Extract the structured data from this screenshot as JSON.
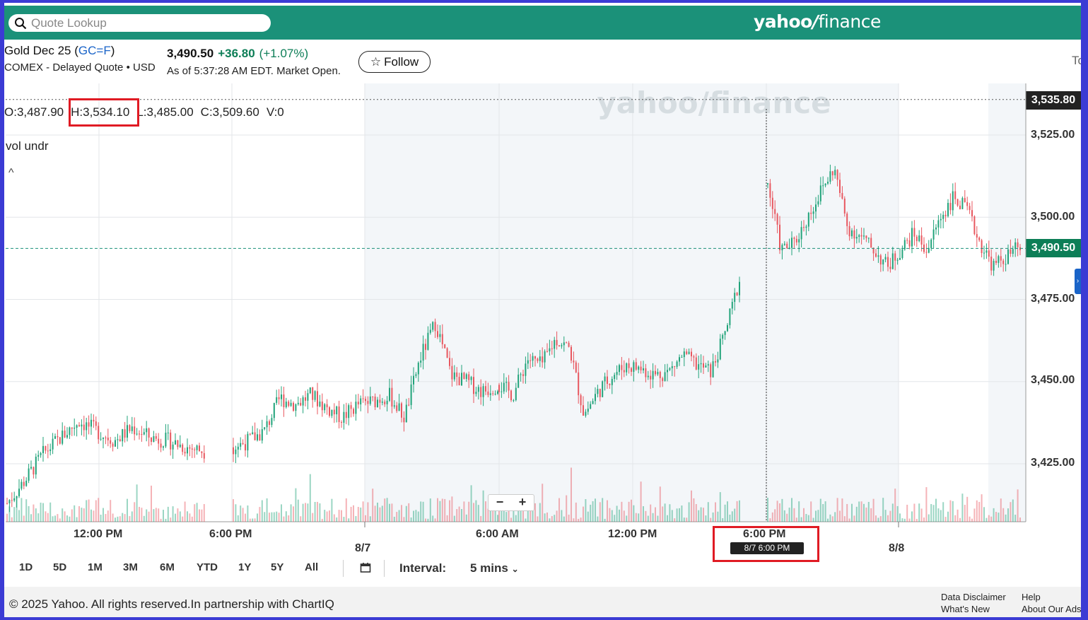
{
  "header": {
    "search_placeholder": "Quote Lookup",
    "brand_main": "yahoo",
    "brand_slash": "/",
    "brand_fin": "finance"
  },
  "quote": {
    "name_prefix": "Gold Dec 25 (",
    "symbol": "GC=F",
    "name_suffix": ")",
    "exchange": "COMEX - Delayed Quote • USD",
    "price": "3,490.50",
    "change": "+36.80",
    "change_pct": "(+1.07%)",
    "as_of": "As of 5:37:28 AM EDT. Market Open.",
    "follow_label": "Follow",
    "cut_text": "To"
  },
  "ohlc": {
    "open": "O:3,487.90",
    "high": "H:3,534.10",
    "low": "L:3,485.00",
    "close": "C:3,509.60",
    "volume": "V:0"
  },
  "study_label": "vol undr",
  "collapse_glyph": "^",
  "watermark": "yahoo/finance",
  "zoom": {
    "minus": "−",
    "plus": "+"
  },
  "x_axis": {
    "times": [
      "12:00 PM",
      "6:00 PM",
      "6:00 AM",
      "12:00 PM",
      "6:00 PM"
    ],
    "dates": [
      "8/7",
      "8/8"
    ],
    "crosshair_tag": "8/7 6:00 PM"
  },
  "y_axis": {
    "labels": [
      "3,525.00",
      "3,500.00",
      "3,475.00",
      "3,450.00",
      "3,425.00"
    ],
    "high_tag": "3,535.80",
    "last_tag": "3,490.50"
  },
  "ranges": [
    "1D",
    "5D",
    "1M",
    "3M",
    "6M",
    "YTD",
    "1Y",
    "5Y",
    "All"
  ],
  "interval": {
    "label": "Interval:",
    "value": "5 mins"
  },
  "footer": {
    "copyright": "© 2025 Yahoo. All rights reserved.In partnership with ChartIQ",
    "disclaimer": "Data Disclaimer",
    "whats_new": "What's New",
    "help": "Help",
    "about": "About Our Ads"
  },
  "colors": {
    "brand_green": "#1b9179",
    "up": "#21a37a",
    "down": "#e8575f",
    "highlight": "#e01b24",
    "border": "#3b3bd4"
  },
  "chart_data": {
    "type": "candlestick",
    "title": "",
    "xlabel": "",
    "ylabel": "",
    "ylim": [
      3405,
      3540
    ],
    "last_price": 3490.5,
    "high_marker": 3535.8,
    "segments": [
      {
        "from": "8/6 9:00 AM",
        "to": "8/6 4:30 PM",
        "path": [
          3413,
          3420,
          3428,
          3433,
          3438,
          3435,
          3432,
          3436,
          3433,
          3432,
          3430,
          3429
        ]
      },
      {
        "from": "8/6 6:00 PM",
        "to": "8/7 6:00 AM",
        "path": [
          3430,
          3432,
          3435,
          3445,
          3443,
          3446,
          3442,
          3439,
          3443,
          3444,
          3446,
          3439,
          3457,
          3468,
          3452,
          3450,
          3447,
          3449
        ]
      },
      {
        "from": "8/7 6:00 AM",
        "to": "8/7 5:00 PM",
        "path": [
          3449,
          3446,
          3457,
          3455,
          3463,
          3460,
          3440,
          3447,
          3452,
          3455,
          3454,
          3452,
          3453,
          3458,
          3455,
          3453,
          3465,
          3481
        ]
      },
      {
        "from": "8/7 6:00 PM",
        "to": "8/8 5:37 AM",
        "path": [
          3510,
          3490,
          3492,
          3500,
          3508,
          3515,
          3497,
          3494,
          3490,
          3485,
          3490,
          3495,
          3490,
          3500,
          3506,
          3502,
          3492,
          3485,
          3488,
          3491
        ]
      }
    ]
  }
}
